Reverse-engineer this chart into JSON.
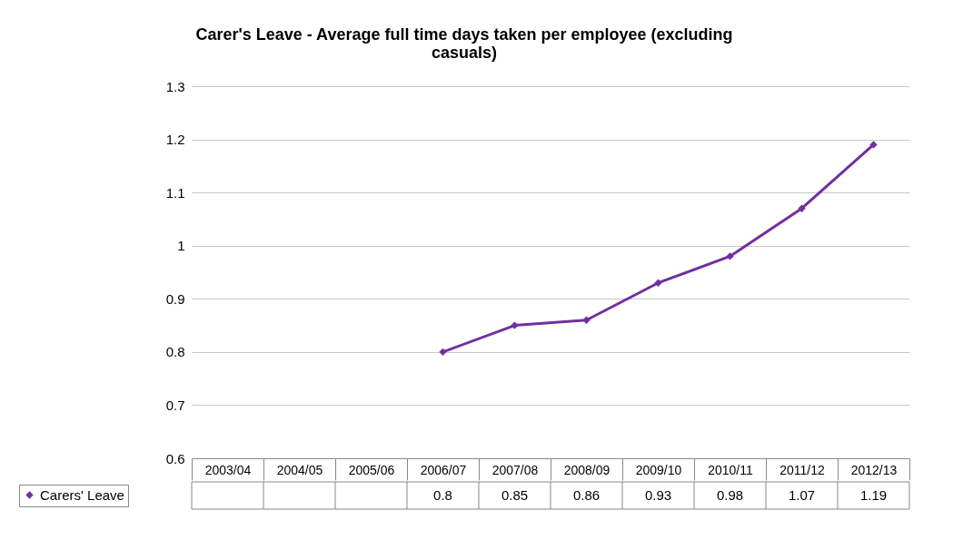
{
  "chart_data": {
    "type": "line",
    "title": "Carer's Leave - Average full time days taken per employee (excluding casuals)",
    "categories": [
      "2003/04",
      "2004/05",
      "2005/06",
      "2006/07",
      "2007/08",
      "2008/09",
      "2009/10",
      "2010/11",
      "2011/12",
      "2012/13"
    ],
    "series": [
      {
        "name": "Carers' Leave",
        "color": "#7030a0",
        "values": [
          null,
          null,
          null,
          0.8,
          0.85,
          0.86,
          0.93,
          0.98,
          1.07,
          1.19
        ]
      }
    ],
    "ylim": [
      0.6,
      1.3
    ],
    "yticks": [
      0.6,
      0.7,
      0.8,
      0.9,
      1,
      1.1,
      1.2,
      1.3
    ],
    "grid": "y",
    "legend": "bottom",
    "marker": "diamond",
    "line_style": "solid",
    "data_labels": true
  }
}
